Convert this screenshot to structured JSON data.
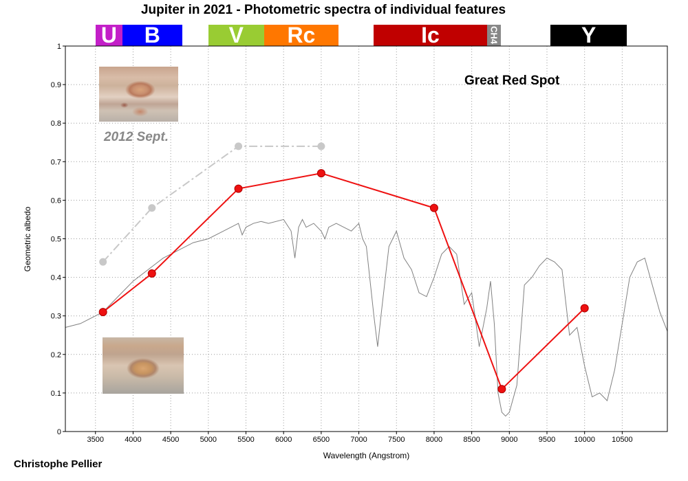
{
  "chart_data": {
    "type": "line",
    "title": "Jupiter in 2021 - Photometric spectra of individual features",
    "xlabel": "Wavelength (Angstrom)",
    "ylabel": "Geometric albedo",
    "feature_label": "Great Red Spot",
    "author": "Christophe Pellier",
    "xlim": [
      3100,
      11100
    ],
    "ylim": [
      0,
      1
    ],
    "grid": true,
    "x_ticks": [
      3500,
      4000,
      4500,
      5000,
      5500,
      6000,
      6500,
      7000,
      7500,
      8000,
      8500,
      9000,
      9500,
      10000,
      10500
    ],
    "y_ticks": [
      0,
      0.1,
      0.2,
      0.3,
      0.4,
      0.5,
      0.6,
      0.7,
      0.8,
      0.9,
      1
    ],
    "y_tick_labels": [
      "0",
      "0.1",
      "0.2",
      "0.3",
      "0.4",
      "0.5",
      "0.6",
      "0.7",
      "0.8",
      "0.9",
      "1"
    ],
    "filter_bands": [
      {
        "name": "U",
        "color": "#c31fc8",
        "x_start": 3500,
        "x_end": 3860
      },
      {
        "name": "B",
        "color": "#0000ff",
        "x_start": 3860,
        "x_end": 4650
      },
      {
        "name": "V",
        "color": "#99cc33",
        "x_start": 5000,
        "x_end": 5740
      },
      {
        "name": "Rc",
        "color": "#ff7700",
        "x_start": 5740,
        "x_end": 6730
      },
      {
        "name": "Ic",
        "color": "#c00000",
        "x_start": 7200,
        "x_end": 8700
      },
      {
        "name": "CH4",
        "color": "#888888",
        "x_start": 8700,
        "x_end": 8890
      },
      {
        "name": "Y",
        "color": "#000000",
        "x_start": 9550,
        "x_end": 10560
      }
    ],
    "series": [
      {
        "color": "#ee1111",
        "style": "solid-markers",
        "x": [
          3600,
          4250,
          5400,
          6500,
          8000,
          8900,
          10000
        ],
        "y": [
          0.31,
          0.41,
          0.63,
          0.67,
          0.58,
          0.11,
          0.32
        ]
      },
      {
        "color": "#c8c8c8",
        "style": "dashed-markers",
        "x": [
          3600,
          4250,
          5400,
          6500
        ],
        "y": [
          0.44,
          0.58,
          0.74,
          0.74
        ]
      },
      {
        "color": "#808080",
        "style": "thin",
        "x": [
          3100,
          3300,
          3500,
          3600,
          3800,
          4000,
          4200,
          4400,
          4600,
          4800,
          5000,
          5200,
          5300,
          5400,
          5450,
          5500,
          5600,
          5700,
          5800,
          6000,
          6100,
          6150,
          6200,
          6250,
          6300,
          6400,
          6500,
          6550,
          6600,
          6700,
          6800,
          6900,
          7000,
          7050,
          7100,
          7150,
          7200,
          7250,
          7300,
          7400,
          7500,
          7600,
          7700,
          7800,
          7900,
          8000,
          8100,
          8200,
          8300,
          8400,
          8500,
          8600,
          8700,
          8750,
          8800,
          8850,
          8900,
          8950,
          9000,
          9100,
          9200,
          9300,
          9400,
          9500,
          9600,
          9700,
          9800,
          9900,
          10000,
          10100,
          10200,
          10300,
          10400,
          10500,
          10600,
          10700,
          10800,
          10900,
          11000,
          11100
        ],
        "y": [
          0.27,
          0.28,
          0.3,
          0.31,
          0.35,
          0.39,
          0.42,
          0.45,
          0.47,
          0.49,
          0.5,
          0.52,
          0.53,
          0.54,
          0.51,
          0.53,
          0.54,
          0.545,
          0.54,
          0.55,
          0.52,
          0.45,
          0.53,
          0.55,
          0.53,
          0.54,
          0.52,
          0.5,
          0.53,
          0.54,
          0.53,
          0.52,
          0.54,
          0.5,
          0.48,
          0.39,
          0.3,
          0.22,
          0.31,
          0.48,
          0.52,
          0.45,
          0.42,
          0.36,
          0.35,
          0.4,
          0.46,
          0.48,
          0.46,
          0.33,
          0.36,
          0.22,
          0.32,
          0.39,
          0.28,
          0.1,
          0.05,
          0.04,
          0.05,
          0.12,
          0.38,
          0.4,
          0.43,
          0.45,
          0.44,
          0.42,
          0.25,
          0.27,
          0.17,
          0.09,
          0.1,
          0.08,
          0.16,
          0.28,
          0.4,
          0.44,
          0.45,
          0.38,
          0.31,
          0.26
        ]
      }
    ]
  }
}
